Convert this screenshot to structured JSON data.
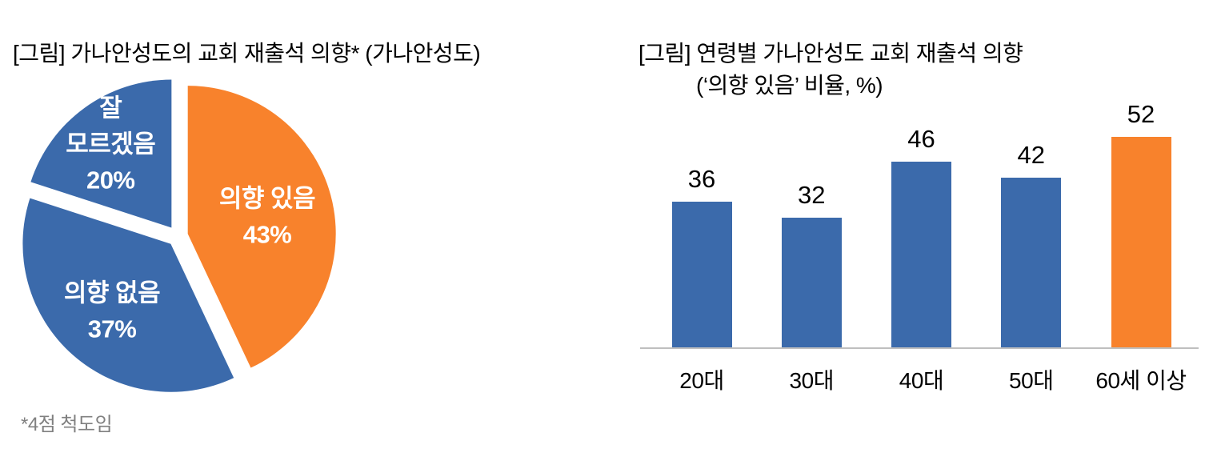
{
  "page": {
    "background": "#FFFFFF",
    "text_color": "#000000"
  },
  "colors": {
    "blue": "#3B6AAB",
    "orange": "#F8822C",
    "axis_line": "#BFBFBF",
    "footnote_gray": "#808080",
    "pie_label_white": "#FFFFFF"
  },
  "chart_data": [
    {
      "type": "pie",
      "title": "[그림] 가나안성도의 교회 재출석 의향* (가나안성도)",
      "footnote": "*4점 척도임",
      "start_at": "12-oclock",
      "direction": "clockwise",
      "exploded": true,
      "legend": "none",
      "slices": [
        {
          "label": "의향 있음",
          "value_pct": 43,
          "color": "#F8822C",
          "label_lines": [
            "의향 있음",
            "43%"
          ],
          "label_r_factor": 0.55
        },
        {
          "label": "의향 없음",
          "value_pct": 37,
          "color": "#3B6AAB",
          "label_lines": [
            "의향 없음",
            "37%"
          ],
          "label_r_factor": 0.6
        },
        {
          "label": "잘 모르겠음",
          "value_pct": 20,
          "color": "#3B6AAB",
          "label_lines": [
            "잘",
            "모르겠음",
            "20%"
          ],
          "label_r_factor": 0.7
        }
      ]
    },
    {
      "type": "bar",
      "title_line1": "[그림] 연령별 가나안성도 교회 재출석 의향",
      "title_line2": "(‘의향 있음’ 비율, %)",
      "categories": [
        "20대",
        "30대",
        "40대",
        "50대",
        "60세 이상"
      ],
      "values": [
        36,
        32,
        46,
        42,
        52
      ],
      "bar_colors": [
        "#3B6AAB",
        "#3B6AAB",
        "#3B6AAB",
        "#3B6AAB",
        "#F8822C"
      ],
      "ylim": [
        0,
        60
      ],
      "value_labels_shown": true,
      "gridlines": false,
      "legend": "none"
    }
  ]
}
